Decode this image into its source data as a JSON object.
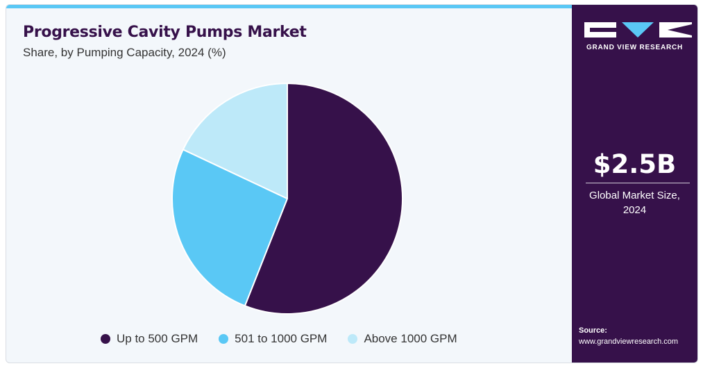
{
  "header": {
    "title": "Progressive Cavity Pumps Market",
    "subtitle": "Share, by Pumping Capacity, 2024 (%)"
  },
  "chart_data": {
    "type": "pie",
    "title": "Progressive Cavity Pumps Market",
    "subtitle": "Share, by Pumping Capacity, 2024 (%)",
    "categories": [
      "Up to 500 GPM",
      "501 to 1000 GPM",
      "Above 1000 GPM"
    ],
    "values": [
      56,
      26,
      18
    ],
    "colors": [
      "#36114a",
      "#5ac8f5",
      "#bde9f9"
    ],
    "start_angle_deg": 0,
    "direction": "clockwise",
    "legend_position": "bottom"
  },
  "sidebar": {
    "brand": "GRAND VIEW RESEARCH",
    "market_size": "$2.5B",
    "market_size_label": "Global Market Size, 2024",
    "source_label": "Source:",
    "source_url": "www.grandviewresearch.com"
  },
  "colors": {
    "brand_dark": "#36114a",
    "accent": "#5ac8f5",
    "background": "#f3f7fb"
  },
  "icons": {
    "logo": "grand-view-research-logo"
  }
}
